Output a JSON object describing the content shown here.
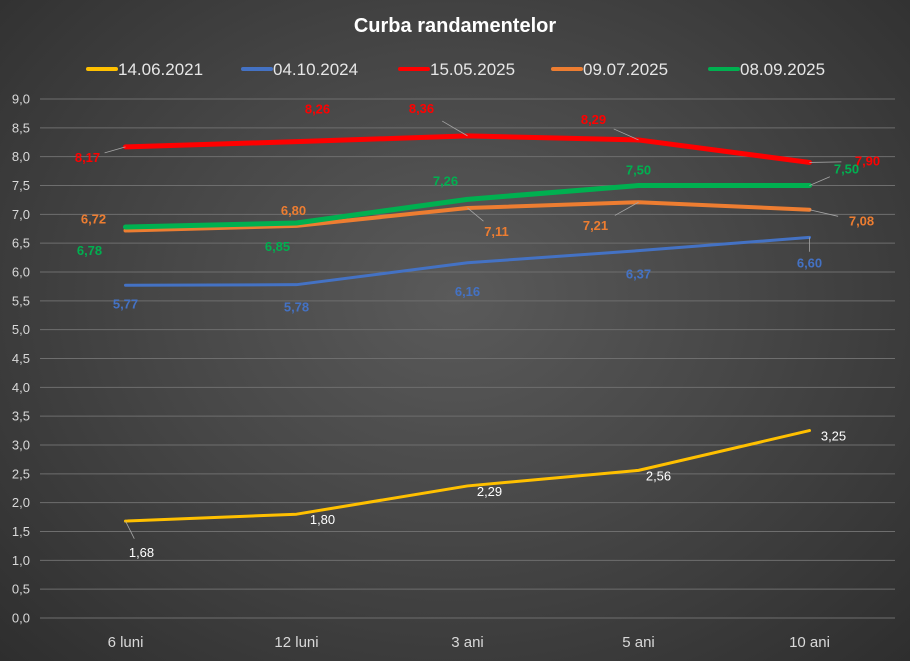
{
  "chart_data": {
    "type": "line",
    "title": "Curba randamentelor",
    "xlabel": "",
    "ylabel": "",
    "categories": [
      "6 luni",
      "12 luni",
      "3 ani",
      "5 ani",
      "10 ani"
    ],
    "ylim": [
      0,
      9
    ],
    "yticks": [
      "0,0",
      "0,5",
      "1,0",
      "1,5",
      "2,0",
      "2,5",
      "3,0",
      "3,5",
      "4,0",
      "4,5",
      "5,0",
      "5,5",
      "6,0",
      "6,5",
      "7,0",
      "7,5",
      "8,0",
      "8,5",
      "9,0"
    ],
    "grid": true,
    "legend_position": "top",
    "series": [
      {
        "name": "14.06.2021",
        "color": "#ffc000",
        "values": [
          1.68,
          1.8,
          2.29,
          2.56,
          3.25
        ],
        "labels": [
          "1,68",
          "1,80",
          "2,29",
          "2,56",
          "3,25"
        ],
        "label_color": "#ffffff"
      },
      {
        "name": "04.10.2024",
        "color": "#4472c4",
        "values": [
          5.77,
          5.78,
          6.16,
          6.37,
          6.6
        ],
        "labels": [
          "5,77",
          "5,78",
          "6,16",
          "6,37",
          "6,60"
        ],
        "label_color": "#4472c4"
      },
      {
        "name": "15.05.2025",
        "color": "#ff0000",
        "values": [
          8.17,
          8.26,
          8.36,
          8.29,
          7.9
        ],
        "labels": [
          "8,17",
          "8,26",
          "8,36",
          "8,29",
          "7,90"
        ],
        "label_color": "#ff0000"
      },
      {
        "name": "09.07.2025",
        "color": "#ed7d31",
        "values": [
          6.72,
          6.8,
          7.11,
          7.21,
          7.08
        ],
        "labels": [
          "6,72",
          "6,80",
          "7,11",
          "7,21",
          "7,08"
        ],
        "label_color": "#ed7d31"
      },
      {
        "name": "08.09.2025",
        "color": "#00b050",
        "values": [
          6.78,
          6.85,
          7.26,
          7.5,
          7.5
        ],
        "labels": [
          "6,78",
          "6,85",
          "7,26",
          "7,50",
          "7,50"
        ],
        "label_color": "#00b050"
      }
    ]
  }
}
